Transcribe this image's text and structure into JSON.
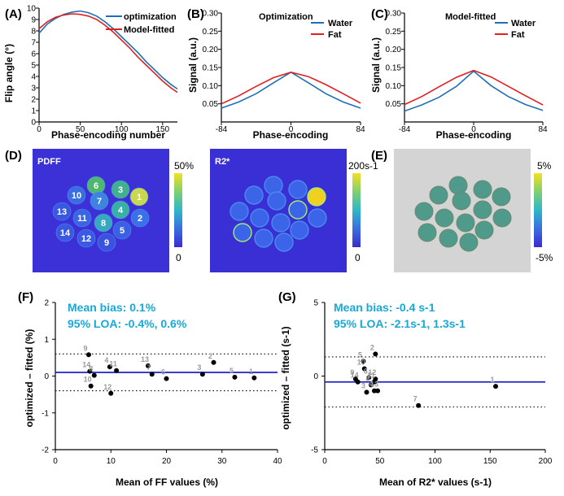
{
  "panel_labels": {
    "a": "(A)",
    "b": "(B)",
    "c": "(C)",
    "d": "(D)",
    "e": "(E)",
    "f": "(F)",
    "g": "(G)"
  },
  "panel_a": {
    "ylabel": "Flip angle (°)",
    "xlabel": "Phase-encoding number",
    "legend": [
      "optimization",
      "Model-fitted"
    ]
  },
  "panel_b": {
    "title": "Optimization",
    "ylabel": "Signal (a.u.)",
    "xlabel": "Phase-encoding",
    "legend": [
      "Water",
      "Fat"
    ]
  },
  "panel_c": {
    "title": "Model-fitted",
    "ylabel": "Signal (a.u.)",
    "xlabel": "Phase-encoding",
    "legend": [
      "Water",
      "Fat"
    ]
  },
  "panel_d": {
    "pdff_label": "PDFF",
    "pdff_max": "50%",
    "pdff_min": "0",
    "r2_label": "R2*",
    "r2_max": "200s-1",
    "r2_min": "0"
  },
  "panel_e": {
    "max": "5%",
    "min": "-5%"
  },
  "panel_f": {
    "ylabel": "optimized – fitted (%)",
    "xlabel": "Mean of FF values (%)",
    "bias": "Mean bias: 0.1%",
    "loa": "95% LOA: -0.4%, 0.6%"
  },
  "panel_g": {
    "ylabel": "optimized – fitted (s-1)",
    "xlabel": "Mean of R2* values (s-1)",
    "bias": "Mean bias: -0.4 s-1",
    "loa": "95% LOA: -2.1s-1, 1.3s-1"
  },
  "colors": {
    "water": "#1f6fb4",
    "fat": "#e02020",
    "bias_line": "#2020c8",
    "annotation": "#18a8d8"
  },
  "chart_data": [
    {
      "type": "line",
      "panel": "A",
      "xlabel": "Phase-encoding number",
      "ylabel": "Flip angle (°)",
      "xlim": [
        0,
        168
      ],
      "ylim": [
        0,
        10
      ],
      "xticks": [
        0,
        50,
        100,
        150
      ],
      "yticks": [
        0,
        1,
        2,
        3,
        4,
        5,
        6,
        7,
        8,
        9,
        10
      ],
      "series": [
        {
          "name": "optimization",
          "x": [
            0,
            10,
            20,
            30,
            40,
            50,
            60,
            70,
            80,
            90,
            100,
            110,
            120,
            130,
            140,
            150,
            160,
            168
          ],
          "values": [
            7.8,
            8.6,
            9.1,
            9.45,
            9.65,
            9.75,
            9.6,
            9.3,
            8.8,
            8.2,
            7.5,
            6.8,
            6.1,
            5.3,
            4.6,
            3.9,
            3.3,
            2.9
          ]
        },
        {
          "name": "Model-fitted",
          "x": [
            0,
            10,
            20,
            30,
            40,
            50,
            60,
            70,
            80,
            90,
            100,
            110,
            120,
            130,
            140,
            150,
            160,
            168
          ],
          "values": [
            8.2,
            8.8,
            9.2,
            9.4,
            9.5,
            9.45,
            9.3,
            9.0,
            8.5,
            7.9,
            7.2,
            6.5,
            5.7,
            5.0,
            4.3,
            3.6,
            3.0,
            2.6
          ]
        }
      ]
    },
    {
      "type": "line",
      "panel": "B",
      "title": "Optimization",
      "xlabel": "Phase-encoding",
      "ylabel": "Signal (a.u.)",
      "xlim": [
        -84,
        84
      ],
      "ylim": [
        0,
        0.3
      ],
      "xticks": [
        -84,
        0,
        84
      ],
      "yticks": [
        0.05,
        0.1,
        0.15,
        0.2,
        0.25,
        0.3
      ],
      "series": [
        {
          "name": "Water",
          "x": [
            -84,
            -63,
            -42,
            -21,
            0,
            21,
            42,
            63,
            84
          ],
          "values": [
            0.038,
            0.055,
            0.078,
            0.108,
            0.137,
            0.108,
            0.078,
            0.055,
            0.038
          ]
        },
        {
          "name": "Fat",
          "x": [
            -84,
            -63,
            -42,
            -21,
            0,
            21,
            42,
            63,
            84
          ],
          "values": [
            0.05,
            0.072,
            0.098,
            0.122,
            0.137,
            0.125,
            0.103,
            0.078,
            0.052
          ]
        }
      ]
    },
    {
      "type": "line",
      "panel": "C",
      "title": "Model-fitted",
      "xlabel": "Phase-encoding",
      "ylabel": "Signal (a.u.)",
      "xlim": [
        -84,
        84
      ],
      "ylim": [
        0,
        0.3
      ],
      "xticks": [
        -84,
        0,
        84
      ],
      "yticks": [
        0.05,
        0.1,
        0.15,
        0.2,
        0.25,
        0.3
      ],
      "series": [
        {
          "name": "Water",
          "x": [
            -84,
            -63,
            -42,
            -21,
            0,
            21,
            42,
            63,
            84
          ],
          "values": [
            0.03,
            0.047,
            0.068,
            0.098,
            0.14,
            0.1,
            0.07,
            0.048,
            0.032
          ]
        },
        {
          "name": "Fat",
          "x": [
            -84,
            -63,
            -42,
            -21,
            0,
            21,
            42,
            63,
            84
          ],
          "values": [
            0.048,
            0.07,
            0.097,
            0.123,
            0.142,
            0.124,
            0.098,
            0.072,
            0.047
          ]
        }
      ]
    },
    {
      "type": "scatter",
      "panel": "F",
      "xlabel": "Mean of FF values (%)",
      "ylabel": "optimized – fitted (%)",
      "xlim": [
        0,
        40
      ],
      "ylim": [
        -2,
        2
      ],
      "xticks": [
        0,
        10,
        20,
        30,
        40
      ],
      "yticks": [
        -2,
        -1,
        0,
        1,
        2
      ],
      "bias": 0.1,
      "loa": [
        -0.4,
        0.6
      ],
      "points": [
        {
          "label": "9",
          "x": 6.0,
          "y": 0.58
        },
        {
          "label": "14",
          "x": 6.2,
          "y": 0.13
        },
        {
          "label": "10",
          "x": 6.4,
          "y": -0.27
        },
        {
          "label": "8",
          "x": 7.0,
          "y": 0.02
        },
        {
          "label": "4",
          "x": 9.8,
          "y": 0.25
        },
        {
          "label": "12",
          "x": 10.0,
          "y": -0.47
        },
        {
          "label": "11",
          "x": 11.0,
          "y": 0.15
        },
        {
          "label": "13",
          "x": 16.7,
          "y": 0.28
        },
        {
          "label": "7",
          "x": 17.4,
          "y": 0.05
        },
        {
          "label": "6",
          "x": 20.0,
          "y": -0.07
        },
        {
          "label": "2",
          "x": 28.5,
          "y": 0.37
        },
        {
          "label": "3",
          "x": 26.5,
          "y": 0.05
        },
        {
          "label": "5",
          "x": 32.3,
          "y": -0.03
        },
        {
          "label": "1",
          "x": 35.8,
          "y": -0.05
        }
      ]
    },
    {
      "type": "scatter",
      "panel": "G",
      "xlabel": "Mean of R2* values (s-1)",
      "ylabel": "optimized – fitted (s-1)",
      "xlim": [
        0,
        200
      ],
      "ylim": [
        -5,
        5
      ],
      "xticks": [
        0,
        50,
        100,
        150,
        200
      ],
      "yticks": [
        -5,
        0,
        5
      ],
      "bias": -0.4,
      "loa": [
        -2.1,
        1.3
      ],
      "points": [
        {
          "label": "2",
          "x": 46,
          "y": 1.5
        },
        {
          "label": "5",
          "x": 35,
          "y": 1.0
        },
        {
          "label": "10",
          "x": 36,
          "y": 0.5
        },
        {
          "label": "9",
          "x": 28,
          "y": -0.2
        },
        {
          "label": "14",
          "x": 30,
          "y": -0.4
        },
        {
          "label": "6",
          "x": 40,
          "y": -0.1
        },
        {
          "label": "12",
          "x": 46,
          "y": -0.2
        },
        {
          "label": "11",
          "x": 45,
          "y": -0.4
        },
        {
          "label": "8",
          "x": 42,
          "y": -0.6
        },
        {
          "label": "3",
          "x": 38,
          "y": -1.1
        },
        {
          "label": "4",
          "x": 45,
          "y": -1.0
        },
        {
          "label": "13",
          "x": 48,
          "y": -1.0
        },
        {
          "label": "7",
          "x": 85,
          "y": -2.0
        },
        {
          "label": "1",
          "x": 155,
          "y": -0.7
        }
      ]
    }
  ],
  "phantom_numbers": [
    {
      "n": "6",
      "bright": true
    },
    {
      "n": "3",
      "bright": true
    },
    {
      "n": "1",
      "bright": true
    },
    {
      "n": "10",
      "bright": false
    },
    {
      "n": "7",
      "bright": false
    },
    {
      "n": "4",
      "bright": true
    },
    {
      "n": "2",
      "bright": false
    },
    {
      "n": "13",
      "bright": false
    },
    {
      "n": "11",
      "bright": false
    },
    {
      "n": "8",
      "bright": false
    },
    {
      "n": "5",
      "bright": false
    },
    {
      "n": "14",
      "bright": false
    },
    {
      "n": "12",
      "bright": false
    },
    {
      "n": "9",
      "bright": false
    }
  ]
}
